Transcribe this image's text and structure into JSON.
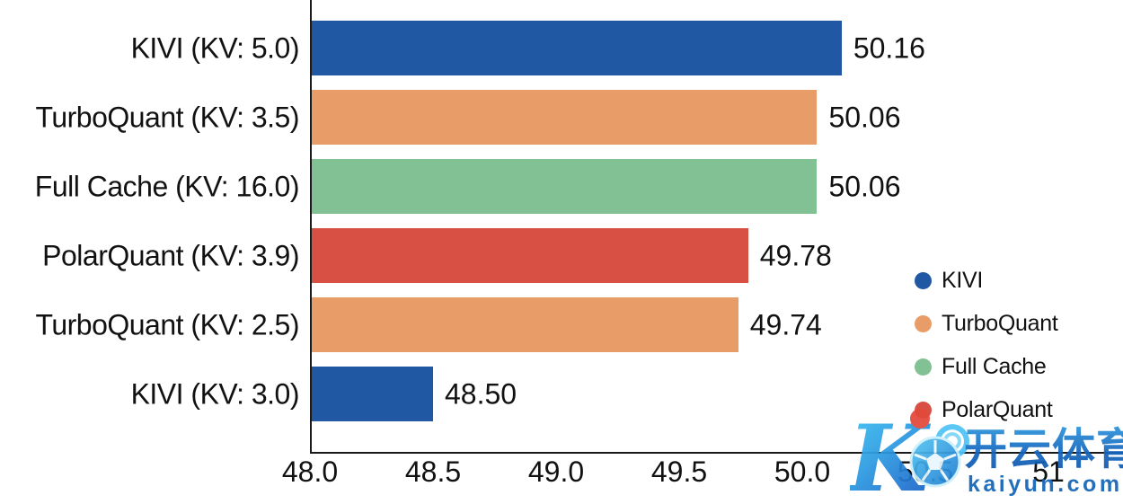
{
  "chart_data": {
    "type": "bar",
    "orientation": "horizontal",
    "title": "",
    "xlabel": "",
    "ylabel": "",
    "grid": false,
    "legend_position": "right-middle",
    "xlim": [
      48.0,
      51.3
    ],
    "categories": [
      "KIVI (KV: 5.0)",
      "TurboQuant (KV: 3.5)",
      "Full Cache (KV: 16.0)",
      "PolarQuant (KV: 3.9)",
      "TurboQuant (KV: 2.5)",
      "KIVI (KV: 3.0)"
    ],
    "values": [
      50.16,
      50.06,
      50.06,
      49.78,
      49.74,
      48.5
    ],
    "value_labels": [
      "50.16",
      "50.06",
      "50.06",
      "49.78",
      "49.74",
      "48.50"
    ],
    "bar_series": [
      "KIVI",
      "TurboQuant",
      "Full Cache",
      "PolarQuant",
      "TurboQuant",
      "KIVI"
    ],
    "bar_colors": [
      "#2158A3",
      "#E89D68",
      "#82C194",
      "#D85043",
      "#E89D68",
      "#2158A3"
    ],
    "x_ticks": [
      "48.0",
      "48.5",
      "49.0",
      "49.5",
      "50.0",
      "50.5",
      "51"
    ],
    "x_tick_values": [
      48.0,
      48.5,
      49.0,
      49.5,
      50.0,
      50.5,
      51.0
    ],
    "legend": [
      {
        "label": "KIVI",
        "color": "#2158A3"
      },
      {
        "label": "TurboQuant",
        "color": "#E89D68"
      },
      {
        "label": "Full Cache",
        "color": "#82C194"
      },
      {
        "label": "PolarQuant",
        "color": "#D85043"
      }
    ],
    "text_color": "#111111",
    "axis_color": "#1a1a1a"
  },
  "watermark": {
    "brand_cn": "开云体育",
    "brand_url": "kaiyun.com",
    "logo": "kaiyun-k-soccer-logo",
    "color_dark_blue": "#1566BE",
    "color_light_blue": "#3EC1F0",
    "color_url": "#1465B8",
    "logo_accent_red": "#E2493B"
  }
}
